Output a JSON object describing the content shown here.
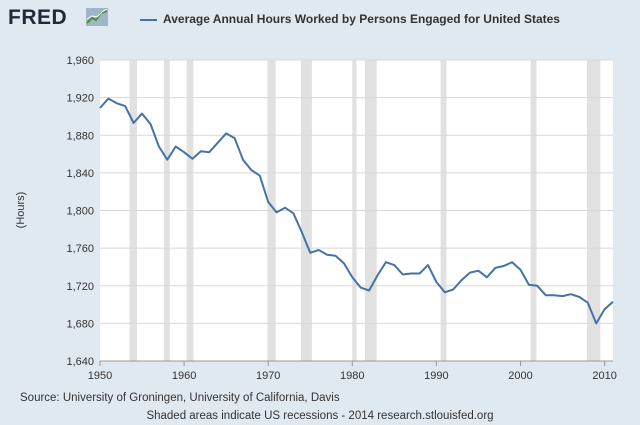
{
  "header": {
    "logo_text": "FRED",
    "logo_icon": "trend-line-icon"
  },
  "footer": {
    "source": "Source: University of Groningen, University of California, Davis",
    "note": "Shaded areas indicate US recessions - 2014 research.stlouisfed.org"
  },
  "colors": {
    "line": "#4572a7",
    "recession": "#e1e1e1",
    "plot_bg": "#ffffff",
    "page_bg": "#e1e9f0",
    "grid": "#d8d8d8"
  },
  "chart_data": {
    "type": "line",
    "title": "",
    "xlabel": "",
    "ylabel": "(Hours)",
    "xlim": [
      1950,
      2011
    ],
    "ylim": [
      1640,
      1960
    ],
    "xticks": [
      1950,
      1960,
      1970,
      1980,
      1990,
      2000,
      2010
    ],
    "yticks": [
      "1,640",
      "1,680",
      "1,720",
      "1,760",
      "1,800",
      "1,840",
      "1,880",
      "1,920",
      "1,960"
    ],
    "ytick_values": [
      1640,
      1680,
      1720,
      1760,
      1800,
      1840,
      1880,
      1920,
      1960
    ],
    "grid": true,
    "legend": "top",
    "series": [
      {
        "name": "Average Annual Hours Worked by Persons Engaged for United States",
        "x": [
          1950,
          1951,
          1952,
          1953,
          1954,
          1955,
          1956,
          1957,
          1958,
          1959,
          1960,
          1961,
          1962,
          1963,
          1964,
          1965,
          1966,
          1967,
          1968,
          1969,
          1970,
          1971,
          1972,
          1973,
          1974,
          1975,
          1976,
          1977,
          1978,
          1979,
          1980,
          1981,
          1982,
          1983,
          1984,
          1985,
          1986,
          1987,
          1988,
          1989,
          1990,
          1991,
          1992,
          1993,
          1994,
          1995,
          1996,
          1997,
          1998,
          1999,
          2000,
          2001,
          2002,
          2003,
          2004,
          2005,
          2006,
          2007,
          2008,
          2009,
          2010,
          2011
        ],
        "y": [
          1909,
          1919,
          1914,
          1911,
          1893,
          1903,
          1892,
          1868,
          1854,
          1868,
          1862,
          1855,
          1863,
          1862,
          1872,
          1882,
          1877,
          1854,
          1843,
          1837,
          1809,
          1798,
          1803,
          1797,
          1777,
          1755,
          1758,
          1753,
          1752,
          1744,
          1729,
          1718,
          1715,
          1731,
          1745,
          1742,
          1732,
          1733,
          1733,
          1742,
          1724,
          1713,
          1716,
          1726,
          1734,
          1736,
          1729,
          1739,
          1741,
          1745,
          1737,
          1721,
          1720,
          1710,
          1710,
          1709,
          1711,
          1708,
          1702,
          1680,
          1695,
          1703
        ]
      }
    ],
    "recessions": [
      [
        1953.5,
        1954.4
      ],
      [
        1957.6,
        1958.3
      ],
      [
        1960.3,
        1961.1
      ],
      [
        1969.9,
        1970.9
      ],
      [
        1973.9,
        1975.2
      ],
      [
        1980.0,
        1980.5
      ],
      [
        1981.5,
        1982.9
      ],
      [
        1990.5,
        1991.2
      ],
      [
        2001.2,
        2001.9
      ],
      [
        2007.9,
        2009.5
      ]
    ]
  }
}
